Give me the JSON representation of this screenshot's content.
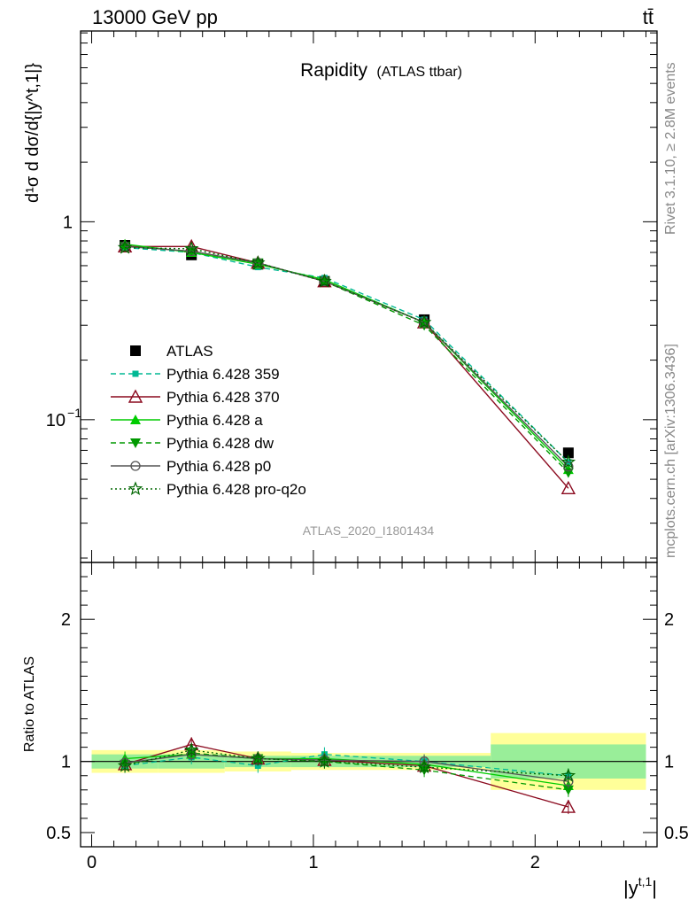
{
  "header": {
    "energy_label": "13000 GeV pp",
    "process_label": "tt̄",
    "plot_title": "Rapidity",
    "plot_subtitle": "(ATLAS ttbar)",
    "analysis_id": "ATLAS_2020_I1801434",
    "rivet_label": "Rivet 3.1.10, ≥ 2.8M events",
    "source_label": "mcplots.cern.ch [arXiv:1306.3436]"
  },
  "chart_data": [
    {
      "type": "line",
      "panel": "main",
      "yscale": "log",
      "ylabel": "d¹/σ dσ/d{|y^t,1|}",
      "xlabel": "|y^t,1|",
      "xlim": [
        -0.05,
        2.55
      ],
      "ylim": [
        0.019,
        9.2
      ],
      "x_ticks": [
        "0",
        "1",
        "2"
      ],
      "y_ticks": [
        "10^-1",
        "1"
      ],
      "x": [
        0.15,
        0.45,
        0.75,
        1.05,
        1.5,
        2.15
      ],
      "series": [
        {
          "name": "ATLAS",
          "marker": "filled-square",
          "color": "#000000",
          "style": "points",
          "values": [
            0.76,
            0.68,
            0.61,
            0.5,
            0.32,
            0.068
          ]
        },
        {
          "name": "Pythia 6.428 359",
          "marker": "small-square",
          "color": "#00b894",
          "style": "dashed",
          "values": [
            0.74,
            0.7,
            0.59,
            0.52,
            0.32,
            0.061
          ]
        },
        {
          "name": "Pythia 6.428 370",
          "marker": "open-triangle",
          "color": "#8b0a1f",
          "style": "solid",
          "values": [
            0.75,
            0.75,
            0.62,
            0.5,
            0.31,
            0.045
          ]
        },
        {
          "name": "Pythia 6.428 a",
          "marker": "filled-triangle",
          "color": "#00cc00",
          "style": "solid",
          "values": [
            0.77,
            0.7,
            0.61,
            0.51,
            0.31,
            0.056
          ]
        },
        {
          "name": "Pythia 6.428 dw",
          "marker": "filled-triangle-down",
          "color": "#009900",
          "style": "dashed",
          "values": [
            0.75,
            0.71,
            0.62,
            0.5,
            0.3,
            0.054
          ]
        },
        {
          "name": "Pythia 6.428 p0",
          "marker": "open-circle",
          "color": "#555555",
          "style": "solid",
          "values": [
            0.75,
            0.71,
            0.62,
            0.5,
            0.31,
            0.058
          ]
        },
        {
          "name": "Pythia 6.428 pro-q2o",
          "marker": "open-star",
          "color": "#006600",
          "style": "dotted",
          "values": [
            0.74,
            0.73,
            0.62,
            0.5,
            0.31,
            0.061
          ]
        }
      ]
    },
    {
      "type": "line",
      "panel": "ratio",
      "ylabel": "Ratio to ATLAS",
      "xlabel": "|y^t,1|",
      "xlim": [
        -0.05,
        2.55
      ],
      "ylim": [
        0.4,
        2.4
      ],
      "x_ticks": [
        "0",
        "1",
        "2"
      ],
      "y_ticks": [
        "0.5",
        "1",
        "2"
      ],
      "x": [
        0.15,
        0.45,
        0.75,
        1.05,
        1.5,
        2.15
      ],
      "bin_edges": [
        0.0,
        0.3,
        0.6,
        0.9,
        1.2,
        1.8,
        2.5
      ],
      "stat_band": [
        0.05,
        0.05,
        0.04,
        0.04,
        0.04,
        0.12
      ],
      "total_band": [
        0.08,
        0.08,
        0.07,
        0.06,
        0.06,
        0.2
      ],
      "series": [
        {
          "name": "Pythia 6.428 359",
          "values": [
            0.97,
            1.03,
            0.97,
            1.05,
            1.0,
            0.9
          ]
        },
        {
          "name": "Pythia 6.428 370",
          "values": [
            0.98,
            1.12,
            1.02,
            1.01,
            0.97,
            0.68
          ]
        },
        {
          "name": "Pythia 6.428 a",
          "values": [
            1.02,
            1.05,
            1.02,
            1.02,
            0.98,
            0.83
          ]
        },
        {
          "name": "Pythia 6.428 dw",
          "values": [
            0.98,
            1.06,
            1.02,
            1.0,
            0.94,
            0.8
          ]
        },
        {
          "name": "Pythia 6.428 p0",
          "values": [
            0.99,
            1.05,
            1.02,
            1.01,
            1.0,
            0.86
          ]
        },
        {
          "name": "Pythia 6.428 pro-q2o",
          "values": [
            0.97,
            1.08,
            1.02,
            1.0,
            0.96,
            0.9
          ]
        }
      ]
    }
  ]
}
